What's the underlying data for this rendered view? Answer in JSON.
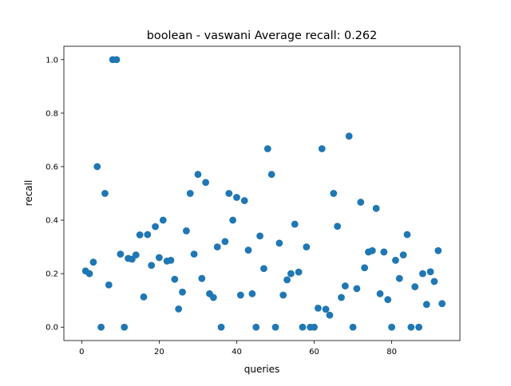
{
  "chart_data": {
    "type": "scatter",
    "title": "boolean - vaswani  Average recall: 0.262",
    "xlabel": "queries",
    "ylabel": "recall",
    "xlim": [
      -4.6,
      97.6
    ],
    "ylim": [
      -0.05,
      1.05
    ],
    "x_ticks": [
      0,
      20,
      40,
      60,
      80
    ],
    "y_ticks": [
      0.0,
      0.2,
      0.4,
      0.6,
      0.8,
      1.0
    ],
    "x_tick_labels": [
      "0",
      "20",
      "40",
      "60",
      "80"
    ],
    "y_tick_labels": [
      "0.0",
      "0.2",
      "0.4",
      "0.6",
      "0.8",
      "1.0"
    ],
    "grid": false,
    "legend": "none",
    "marker_color": "#1f77b4",
    "x": [
      1,
      2,
      3,
      4,
      5,
      6,
      7,
      8,
      9,
      10,
      11,
      12,
      13,
      14,
      15,
      16,
      17,
      18,
      19,
      20,
      21,
      22,
      23,
      24,
      25,
      26,
      27,
      28,
      29,
      30,
      31,
      32,
      33,
      34,
      35,
      36,
      37,
      38,
      39,
      40,
      41,
      42,
      43,
      44,
      45,
      46,
      47,
      48,
      49,
      50,
      51,
      52,
      53,
      54,
      55,
      56,
      57,
      58,
      59,
      60,
      61,
      62,
      63,
      64,
      65,
      66,
      67,
      68,
      69,
      70,
      71,
      72,
      73,
      74,
      75,
      76,
      77,
      78,
      79,
      80,
      81,
      82,
      83,
      84,
      85,
      86,
      87,
      88,
      89,
      90,
      91,
      92,
      93
    ],
    "y": [
      0.21,
      0.2,
      0.243,
      0.6,
      0.0,
      0.5,
      0.158,
      1.0,
      1.0,
      0.273,
      0.0,
      0.257,
      0.254,
      0.27,
      0.345,
      0.113,
      0.346,
      0.231,
      0.376,
      0.26,
      0.4,
      0.247,
      0.25,
      0.179,
      0.068,
      0.131,
      0.36,
      0.5,
      0.273,
      0.571,
      0.182,
      0.541,
      0.125,
      0.111,
      0.3,
      0.0,
      0.32,
      0.5,
      0.4,
      0.485,
      0.12,
      0.473,
      0.288,
      0.125,
      0.0,
      0.341,
      0.219,
      0.667,
      0.571,
      0.0,
      0.314,
      0.12,
      0.177,
      0.2,
      0.385,
      0.206,
      0.0,
      0.3,
      0.0,
      0.0,
      0.071,
      0.667,
      0.067,
      0.045,
      0.5,
      0.377,
      0.111,
      0.154,
      0.714,
      0.0,
      0.144,
      0.467,
      0.222,
      0.281,
      0.286,
      0.444,
      0.125,
      0.281,
      0.103,
      0.0,
      0.25,
      0.182,
      0.27,
      0.346,
      0.0,
      0.151,
      0.0,
      0.2,
      0.085,
      0.207,
      0.171,
      0.286,
      0.088
    ]
  }
}
